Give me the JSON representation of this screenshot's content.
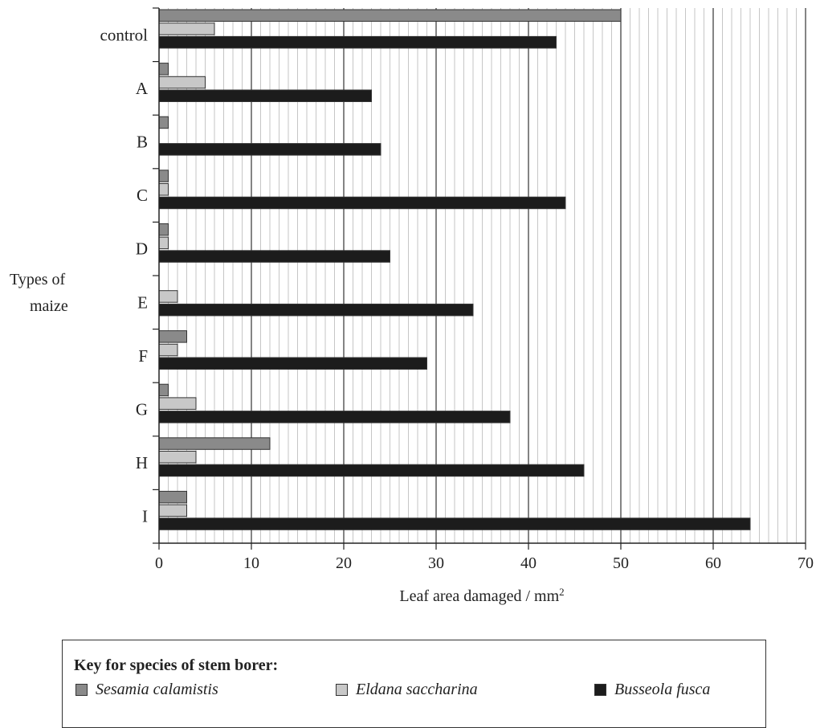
{
  "chart_data": {
    "type": "bar",
    "orientation": "horizontal",
    "categories": [
      "control",
      "A",
      "B",
      "C",
      "D",
      "E",
      "F",
      "G",
      "H",
      "I"
    ],
    "series": [
      {
        "name": "Sesamia calamistis",
        "color": "#8a8a8a",
        "values": [
          50,
          1,
          1,
          1,
          1,
          0,
          3,
          1,
          12,
          3
        ]
      },
      {
        "name": "Eldana saccharina",
        "color": "#c8c8c8",
        "values": [
          6,
          5,
          0,
          1,
          1,
          2,
          2,
          4,
          4,
          3
        ]
      },
      {
        "name": "Busseola fusca",
        "color": "#1c1c1c",
        "values": [
          43,
          23,
          24,
          44,
          25,
          34,
          29,
          38,
          46,
          64
        ]
      }
    ],
    "xlabel_text": "Leaf area damaged / mm",
    "xlabel_sup": "2",
    "ylabel_line1": "Types of",
    "ylabel_line2": "maize",
    "xlim": [
      0,
      70
    ],
    "xticks": [
      0,
      10,
      20,
      30,
      40,
      50,
      60,
      70
    ],
    "grid": "vertical",
    "legend_position": "bottom"
  },
  "legend": {
    "title": "Key for species of stem borer:"
  }
}
